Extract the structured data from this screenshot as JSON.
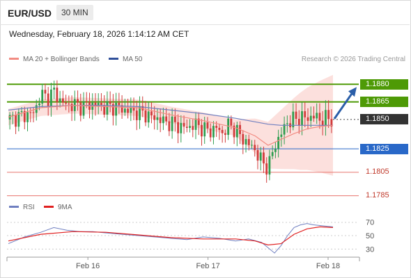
{
  "header": {
    "pair": "EUR/USD",
    "timeframe": "30 MIN"
  },
  "timestamp": "Wednesday, February 18, 2026 1:14:12 AM CET",
  "legend": {
    "ma20_label": "MA 20 + Bollinger Bands",
    "ma50_label": "MA 50",
    "credit": "Research © 2026 Trading Central"
  },
  "rsi_legend": {
    "rsi_label": "RSI",
    "ma_label": "9MA"
  },
  "colors": {
    "resistance": "#4e9a06",
    "support_blue": "#2968c8",
    "support_red": "#e8736c",
    "ma20": "#f28b82",
    "ma50": "#6f7fc0",
    "band_fill": "#fbd5d2",
    "up": "#2e9e4f",
    "down": "#d13b3b",
    "current": "#333333",
    "arrow": "#2a5ea8"
  },
  "levels": [
    {
      "label": "1.1880",
      "price": 1.188,
      "kind": "resistance"
    },
    {
      "label": "1.1865",
      "price": 1.1865,
      "kind": "resistance"
    },
    {
      "label": "1.1850",
      "price": 1.185,
      "kind": "current"
    },
    {
      "label": "1.1825",
      "price": 1.1825,
      "kind": "support"
    },
    {
      "label": "1.1805",
      "price": 1.1805,
      "kind": "support_minor"
    },
    {
      "label": "1.1785",
      "price": 1.1785,
      "kind": "support_minor"
    }
  ],
  "x_axis": {
    "labels": [
      "Feb 16",
      "Feb 17",
      "Feb 18"
    ]
  },
  "rsi_axis": {
    "ticks": [
      "70",
      "50",
      "30"
    ]
  },
  "chart_data": {
    "type": "line",
    "title": "EUR/USD 30 MIN",
    "ylim": [
      1.178,
      1.1895
    ],
    "x_range": [
      0,
      100
    ],
    "categories": [
      "Feb 16",
      "Feb 17",
      "Feb 18"
    ],
    "series": [
      {
        "name": "Price",
        "x": [
          0,
          4,
          8,
          10,
          12,
          14,
          16,
          18,
          20,
          22,
          24,
          26,
          28,
          30,
          32,
          34,
          36,
          38,
          40,
          42,
          44,
          46,
          48,
          50,
          52,
          54,
          56,
          58,
          60,
          62,
          64,
          66,
          68,
          70,
          72,
          74,
          76,
          78,
          80,
          82,
          84,
          86,
          88,
          90,
          92,
          94,
          96,
          98,
          100
        ],
        "values": [
          1.185,
          1.1853,
          1.1856,
          1.1872,
          1.1868,
          1.1874,
          1.1866,
          1.1862,
          1.1863,
          1.1861,
          1.1862,
          1.1863,
          1.1862,
          1.186,
          1.1861,
          1.186,
          1.1858,
          1.1857,
          1.1856,
          1.1855,
          1.1852,
          1.1851,
          1.1848,
          1.1847,
          1.1845,
          1.1843,
          1.1844,
          1.1846,
          1.1842,
          1.184,
          1.1843,
          1.1838,
          1.1846,
          1.1841,
          1.1834,
          1.1829,
          1.1824,
          1.1814,
          1.1809,
          1.1827,
          1.1838,
          1.1848,
          1.185,
          1.1852,
          1.1851,
          1.1853,
          1.185,
          1.1851,
          1.185
        ]
      },
      {
        "name": "MA 20",
        "x": [
          0,
          10,
          20,
          30,
          40,
          50,
          60,
          70,
          76,
          80,
          84,
          88,
          92,
          96,
          100
        ],
        "values": [
          1.1852,
          1.186,
          1.1862,
          1.1861,
          1.186,
          1.1854,
          1.1849,
          1.1843,
          1.1836,
          1.1828,
          1.1833,
          1.1838,
          1.1842,
          1.1844,
          1.1845
        ]
      },
      {
        "name": "MA 50",
        "x": [
          0,
          10,
          20,
          30,
          40,
          50,
          60,
          70,
          76,
          80,
          84,
          88,
          92,
          96,
          100
        ],
        "values": [
          1.1858,
          1.1861,
          1.1862,
          1.1862,
          1.1861,
          1.1858,
          1.1855,
          1.1851,
          1.1848,
          1.1846,
          1.1845,
          1.1845,
          1.1845,
          1.1845,
          1.1845
        ]
      },
      {
        "name": "RSI",
        "x": [
          0,
          5,
          10,
          14,
          18,
          22,
          26,
          30,
          35,
          40,
          45,
          50,
          55,
          60,
          65,
          70,
          74,
          78,
          82,
          84,
          86,
          88,
          90,
          92,
          94,
          96,
          98,
          100
        ],
        "values": [
          38,
          48,
          55,
          62,
          58,
          56,
          56,
          54,
          52,
          50,
          48,
          46,
          44,
          48,
          46,
          42,
          45,
          40,
          24,
          35,
          50,
          62,
          66,
          68,
          66,
          65,
          64,
          63
        ]
      },
      {
        "name": "9MA",
        "x": [
          0,
          10,
          20,
          30,
          40,
          50,
          60,
          70,
          76,
          80,
          84,
          88,
          92,
          96,
          100
        ],
        "values": [
          42,
          52,
          56,
          55,
          51,
          47,
          45,
          45,
          42,
          36,
          38,
          52,
          60,
          63,
          62
        ]
      }
    ],
    "annotations": [
      "Forecast arrow up from 1.1850 toward 1.1880"
    ]
  }
}
